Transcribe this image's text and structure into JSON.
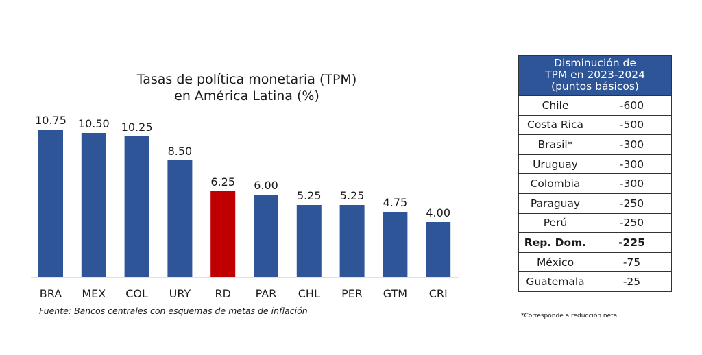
{
  "chart_data": {
    "type": "bar",
    "title": "Tasas de política monetaria (TPM) en América Latina (%)",
    "title_lines": [
      "Tasas de política monetaria (TPM)",
      "en América Latina (%)"
    ],
    "categories": [
      "BRA",
      "MEX",
      "COL",
      "URY",
      "RD",
      "PAR",
      "CHL",
      "PER",
      "GTM",
      "CRI"
    ],
    "values": [
      10.75,
      10.5,
      10.25,
      8.5,
      6.25,
      6.0,
      5.25,
      5.25,
      4.75,
      4.0
    ],
    "labels": [
      "10.75",
      "10.50",
      "10.25",
      "8.50",
      "6.25",
      "6.00",
      "5.25",
      "5.25",
      "4.75",
      "4.00"
    ],
    "highlight_category": "RD",
    "xlabel": "",
    "ylabel": "",
    "ylim": [
      0,
      10.75
    ],
    "grid": false,
    "legend": "none",
    "source": "Fuente: Bancos centrales con esquemas de metas de inflación"
  },
  "colors": {
    "bar": "#2e5597",
    "highlight": "#c00000",
    "header_bg": "#2e5597"
  },
  "table": {
    "header_lines": [
      "Disminución de",
      "TPM en 2023-2024",
      "(puntos básicos)"
    ],
    "rows": [
      {
        "country": "Chile",
        "value": "-600",
        "bold": false
      },
      {
        "country": "Costa Rica",
        "value": "-500",
        "bold": false
      },
      {
        "country": "Brasil*",
        "value": "-300",
        "bold": false
      },
      {
        "country": "Uruguay",
        "value": "-300",
        "bold": false
      },
      {
        "country": "Colombia",
        "value": "-300",
        "bold": false
      },
      {
        "country": "Paraguay",
        "value": "-250",
        "bold": false
      },
      {
        "country": "Perú",
        "value": "-250",
        "bold": false
      },
      {
        "country": "Rep. Dom.",
        "value": "-225",
        "bold": true
      },
      {
        "country": "México",
        "value": "-75",
        "bold": false
      },
      {
        "country": "Guatemala",
        "value": "-25",
        "bold": false
      }
    ],
    "note": "*Corresponde a reducción neta"
  }
}
